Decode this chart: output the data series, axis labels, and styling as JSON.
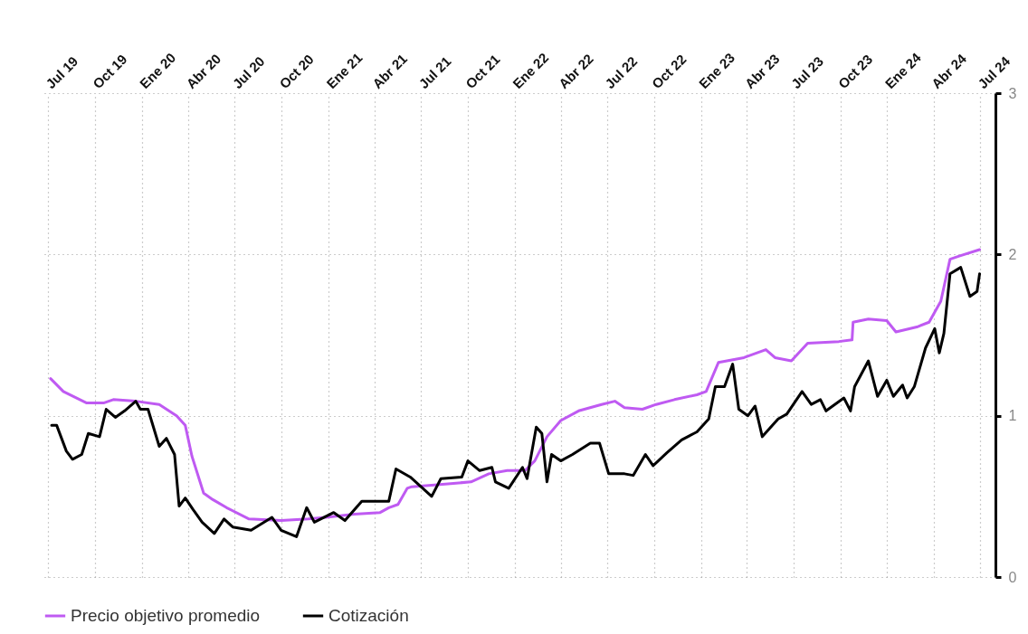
{
  "chart_data": {
    "type": "line",
    "xlim": [
      "2019-06-22",
      "2024-07-31"
    ],
    "ylim": [
      0,
      3
    ],
    "yticks": [
      0,
      1,
      2,
      3
    ],
    "xticks": [
      {
        "value": "2019-07-01",
        "label": "Jul 19"
      },
      {
        "value": "2019-10-01",
        "label": "Oct 19"
      },
      {
        "value": "2020-01-01",
        "label": "Ene 20"
      },
      {
        "value": "2020-04-01",
        "label": "Abr 20"
      },
      {
        "value": "2020-07-01",
        "label": "Jul 20"
      },
      {
        "value": "2020-10-01",
        "label": "Oct 20"
      },
      {
        "value": "2021-01-01",
        "label": "Ene 21"
      },
      {
        "value": "2021-04-01",
        "label": "Abr 21"
      },
      {
        "value": "2021-07-01",
        "label": "Jul 21"
      },
      {
        "value": "2021-10-01",
        "label": "Oct 21"
      },
      {
        "value": "2022-01-01",
        "label": "Ene 22"
      },
      {
        "value": "2022-04-01",
        "label": "Abr 22"
      },
      {
        "value": "2022-07-01",
        "label": "Jul 22"
      },
      {
        "value": "2022-10-01",
        "label": "Oct 22"
      },
      {
        "value": "2023-01-01",
        "label": "Ene 23"
      },
      {
        "value": "2023-04-01",
        "label": "Abr 23"
      },
      {
        "value": "2023-07-01",
        "label": "Jul 23"
      },
      {
        "value": "2023-10-01",
        "label": "Oct 23"
      },
      {
        "value": "2024-01-01",
        "label": "Ene 24"
      },
      {
        "value": "2024-04-01",
        "label": "Abr 24"
      },
      {
        "value": "2024-07-01",
        "label": "Jul 24"
      }
    ],
    "grid": true,
    "legend": "bottom",
    "line_style": "solid",
    "marker": "none",
    "series": [
      {
        "name": "Precio objetivo promedio",
        "color": "#bf5af2",
        "x": [
          "2019-07-06",
          "2019-07-31",
          "2019-09-14",
          "2019-10-19",
          "2019-11-06",
          "2019-12-20",
          "2020-02-04",
          "2020-03-09",
          "2020-03-26",
          "2020-04-08",
          "2020-05-01",
          "2020-05-19",
          "2020-06-15",
          "2020-07-29",
          "2020-09-30",
          "2020-11-22",
          "2020-12-27",
          "2021-02-20",
          "2021-04-12",
          "2021-04-29",
          "2021-05-17",
          "2021-06-04",
          "2021-06-13",
          "2021-07-27",
          "2021-10-07",
          "2021-11-11",
          "2021-12-17",
          "2022-01-21",
          "2022-02-09",
          "2022-03-05",
          "2022-04-01",
          "2022-05-06",
          "2022-06-20",
          "2022-07-16",
          "2022-08-04",
          "2022-09-08",
          "2022-10-05",
          "2022-11-10",
          "2022-12-24",
          "2023-01-11",
          "2023-02-04",
          "2023-03-26",
          "2023-05-08",
          "2023-05-26",
          "2023-06-27",
          "2023-07-29",
          "2023-09-28",
          "2023-10-24",
          "2023-10-26",
          "2023-11-25",
          "2023-12-31",
          "2024-01-18",
          "2024-02-28",
          "2024-03-23",
          "2024-04-15",
          "2024-05-03",
          "2024-05-21",
          "2024-06-30"
        ],
        "values": [
          1.23,
          1.15,
          1.08,
          1.08,
          1.1,
          1.09,
          1.07,
          1.0,
          0.94,
          0.75,
          0.52,
          0.48,
          0.43,
          0.36,
          0.35,
          0.36,
          0.37,
          0.39,
          0.4,
          0.43,
          0.45,
          0.55,
          0.56,
          0.57,
          0.59,
          0.64,
          0.66,
          0.66,
          0.72,
          0.87,
          0.97,
          1.03,
          1.07,
          1.09,
          1.05,
          1.04,
          1.07,
          1.1,
          1.13,
          1.15,
          1.33,
          1.36,
          1.41,
          1.36,
          1.34,
          1.45,
          1.46,
          1.47,
          1.58,
          1.6,
          1.59,
          1.52,
          1.55,
          1.58,
          1.71,
          1.97,
          1.99,
          2.03
        ]
      },
      {
        "name": "Cotización",
        "color": "#000000",
        "x": [
          "2019-07-08",
          "2019-07-18",
          "2019-08-06",
          "2019-08-18",
          "2019-09-05",
          "2019-09-18",
          "2019-10-10",
          "2019-10-23",
          "2019-11-10",
          "2019-11-28",
          "2019-12-20",
          "2019-12-29",
          "2020-01-13",
          "2020-02-04",
          "2020-02-18",
          "2020-03-05",
          "2020-03-14",
          "2020-03-26",
          "2020-04-10",
          "2020-04-28",
          "2020-05-22",
          "2020-06-10",
          "2020-06-27",
          "2020-08-02",
          "2020-09-12",
          "2020-09-30",
          "2020-10-30",
          "2020-11-19",
          "2020-12-04",
          "2021-01-11",
          "2021-02-02",
          "2021-03-07",
          "2021-04-29",
          "2021-05-13",
          "2021-06-10",
          "2021-07-22",
          "2021-08-09",
          "2021-09-19",
          "2021-10-01",
          "2021-10-24",
          "2021-11-17",
          "2021-11-24",
          "2021-12-20",
          "2022-01-16",
          "2022-01-25",
          "2022-02-12",
          "2022-02-23",
          "2022-03-05",
          "2022-03-14",
          "2022-04-01",
          "2022-04-24",
          "2022-05-29",
          "2022-06-16",
          "2022-07-04",
          "2022-08-04",
          "2022-08-21",
          "2022-09-14",
          "2022-09-29",
          "2022-10-26",
          "2022-11-24",
          "2022-12-18",
          "2022-12-24",
          "2023-01-16",
          "2023-01-29",
          "2023-02-16",
          "2023-03-04",
          "2023-03-16",
          "2023-04-03",
          "2023-04-17",
          "2023-05-01",
          "2023-06-01",
          "2023-06-18",
          "2023-07-18",
          "2023-08-05",
          "2023-08-23",
          "2023-09-03",
          "2023-10-08",
          "2023-10-21",
          "2023-10-29",
          "2023-11-25",
          "2023-12-13",
          "2023-12-31",
          "2024-01-13",
          "2024-01-31",
          "2024-02-09",
          "2024-02-23",
          "2024-03-16",
          "2024-04-03",
          "2024-04-12",
          "2024-04-21",
          "2024-05-03",
          "2024-05-24",
          "2024-06-11",
          "2024-06-25",
          "2024-06-30"
        ],
        "values": [
          0.94,
          0.94,
          0.78,
          0.73,
          0.76,
          0.89,
          0.87,
          1.04,
          0.99,
          1.03,
          1.09,
          1.04,
          1.04,
          0.81,
          0.86,
          0.76,
          0.44,
          0.49,
          0.42,
          0.34,
          0.27,
          0.36,
          0.31,
          0.29,
          0.37,
          0.29,
          0.25,
          0.43,
          0.34,
          0.4,
          0.35,
          0.47,
          0.47,
          0.67,
          0.62,
          0.5,
          0.61,
          0.62,
          0.72,
          0.66,
          0.68,
          0.59,
          0.55,
          0.68,
          0.61,
          0.93,
          0.89,
          0.59,
          0.76,
          0.72,
          0.76,
          0.83,
          0.83,
          0.64,
          0.64,
          0.63,
          0.76,
          0.69,
          0.77,
          0.85,
          0.89,
          0.9,
          0.98,
          1.18,
          1.18,
          1.32,
          1.04,
          1.0,
          1.06,
          0.87,
          0.98,
          1.01,
          1.15,
          1.07,
          1.1,
          1.03,
          1.11,
          1.03,
          1.18,
          1.34,
          1.12,
          1.22,
          1.12,
          1.19,
          1.11,
          1.18,
          1.42,
          1.54,
          1.39,
          1.51,
          1.88,
          1.92,
          1.74,
          1.77,
          1.88
        ]
      }
    ]
  }
}
